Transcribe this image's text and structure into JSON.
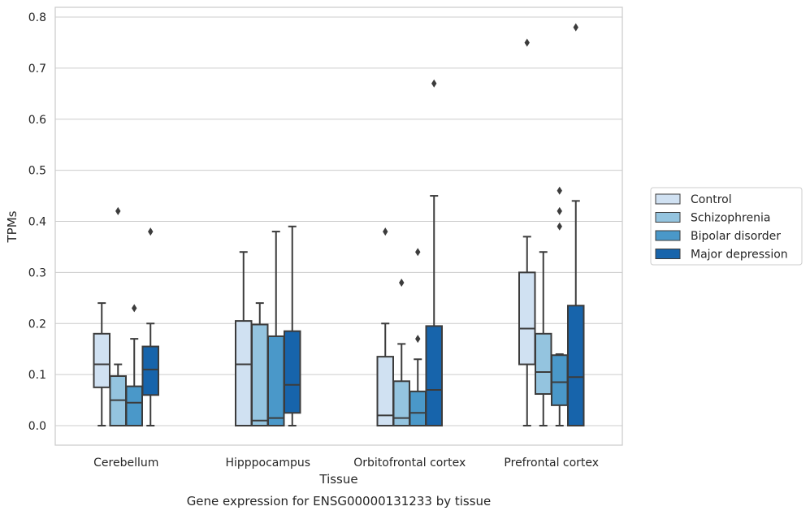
{
  "chart_data": {
    "type": "box",
    "xlabel": "Tissue",
    "ylabel": "TPMs",
    "caption": "Gene expression for ENSG00000131233 by tissue",
    "ylim": [
      -0.04,
      0.82
    ],
    "yticks": [
      "0.0",
      "0.1",
      "0.2",
      "0.3",
      "0.4",
      "0.5",
      "0.6",
      "0.7",
      "0.8"
    ],
    "grid": "horizontal",
    "legend_position": "right",
    "categories": [
      "Cerebellum",
      "Hipppocampus",
      "Orbitofrontal cortex",
      "Prefrontal cortex"
    ],
    "series": [
      {
        "name": "Control",
        "color": "#d0e1f2",
        "boxes": [
          {
            "whislo": 0.0,
            "q1": 0.075,
            "med": 0.12,
            "q3": 0.18,
            "whishi": 0.24,
            "fliers": []
          },
          {
            "whislo": 0.0,
            "q1": 0.0,
            "med": 0.12,
            "q3": 0.205,
            "whishi": 0.34,
            "fliers": []
          },
          {
            "whislo": 0.0,
            "q1": 0.0,
            "med": 0.02,
            "q3": 0.135,
            "whishi": 0.2,
            "fliers": [
              0.38
            ]
          },
          {
            "whislo": 0.0,
            "q1": 0.12,
            "med": 0.19,
            "q3": 0.3,
            "whishi": 0.37,
            "fliers": [
              0.75
            ]
          }
        ]
      },
      {
        "name": "Schizophrenia",
        "color": "#94c4df",
        "boxes": [
          {
            "whislo": 0.0,
            "q1": 0.0,
            "med": 0.05,
            "q3": 0.097,
            "whishi": 0.12,
            "fliers": [
              0.42
            ]
          },
          {
            "whislo": 0.0,
            "q1": 0.0,
            "med": 0.01,
            "q3": 0.198,
            "whishi": 0.24,
            "fliers": []
          },
          {
            "whislo": 0.0,
            "q1": 0.0,
            "med": 0.015,
            "q3": 0.087,
            "whishi": 0.16,
            "fliers": [
              0.28
            ]
          },
          {
            "whislo": 0.0,
            "q1": 0.062,
            "med": 0.105,
            "q3": 0.18,
            "whishi": 0.34,
            "fliers": []
          }
        ]
      },
      {
        "name": "Bipolar disorder",
        "color": "#4a98c9",
        "boxes": [
          {
            "whislo": 0.0,
            "q1": 0.0,
            "med": 0.045,
            "q3": 0.077,
            "whishi": 0.17,
            "fliers": [
              0.23
            ]
          },
          {
            "whislo": 0.0,
            "q1": 0.0,
            "med": 0.015,
            "q3": 0.175,
            "whishi": 0.38,
            "fliers": []
          },
          {
            "whislo": 0.0,
            "q1": 0.0,
            "med": 0.025,
            "q3": 0.067,
            "whishi": 0.13,
            "fliers": [
              0.17,
              0.34
            ]
          },
          {
            "whislo": 0.0,
            "q1": 0.04,
            "med": 0.085,
            "q3": 0.138,
            "whishi": 0.14,
            "fliers": [
              0.39,
              0.42,
              0.46
            ]
          }
        ]
      },
      {
        "name": "Major depression",
        "color": "#1764ab",
        "boxes": [
          {
            "whislo": 0.0,
            "q1": 0.06,
            "med": 0.11,
            "q3": 0.155,
            "whishi": 0.2,
            "fliers": [
              0.38
            ]
          },
          {
            "whislo": 0.0,
            "q1": 0.025,
            "med": 0.08,
            "q3": 0.185,
            "whishi": 0.39,
            "fliers": []
          },
          {
            "whislo": 0.0,
            "q1": 0.0,
            "med": 0.07,
            "q3": 0.195,
            "whishi": 0.45,
            "fliers": [
              0.67
            ]
          },
          {
            "whislo": 0.0,
            "q1": 0.0,
            "med": 0.095,
            "q3": 0.235,
            "whishi": 0.44,
            "fliers": [
              0.78
            ]
          }
        ]
      }
    ]
  }
}
